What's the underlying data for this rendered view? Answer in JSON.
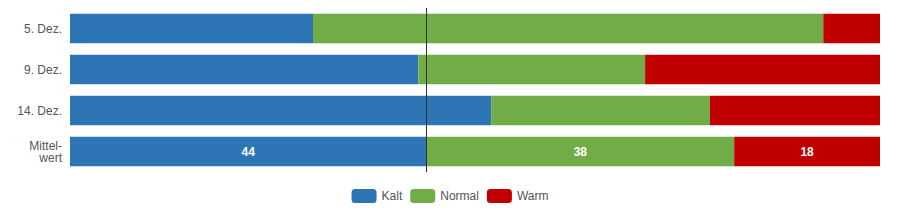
{
  "chart_data": {
    "type": "bar",
    "orientation": "horizontal",
    "stacked": true,
    "categories": [
      "5. Dez.",
      "9. Dez.",
      "14. Dez.",
      "Mittel-\nwert"
    ],
    "series": [
      {
        "name": "Kalt",
        "color": "#2E75B6",
        "values": [
          30,
          43,
          52,
          44
        ],
        "data_labels": true,
        "value_labels": [
          null,
          null,
          null,
          "44"
        ]
      },
      {
        "name": "Normal",
        "color": "#70AD47",
        "values": [
          63,
          28,
          27,
          38
        ],
        "data_labels": true,
        "value_labels": [
          null,
          null,
          null,
          "38"
        ]
      },
      {
        "name": "Warm",
        "color": "#C00000",
        "values": [
          7,
          29,
          21,
          18
        ],
        "data_labels": true,
        "value_labels": [
          null,
          null,
          null,
          "18"
        ]
      }
    ],
    "xlim": [
      0,
      100
    ],
    "vline": 44,
    "tick_labels": "y",
    "grid": false,
    "legend": "bottom"
  }
}
